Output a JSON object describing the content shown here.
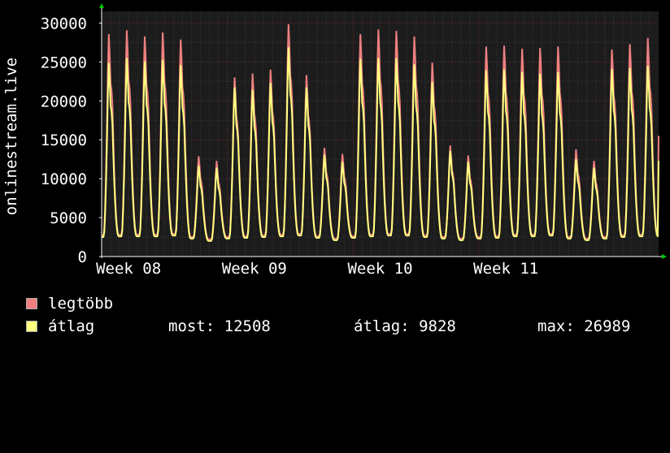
{
  "chart_data": {
    "type": "line",
    "ylabel": "onlinestream.live",
    "ylim": [
      0,
      31500
    ],
    "yticks": [
      0,
      5000,
      10000,
      15000,
      20000,
      25000,
      30000
    ],
    "ytick_labels": [
      "0",
      "5000",
      "10000",
      "15000",
      "20000",
      "25000",
      "30000"
    ],
    "x_axis_unit": "day",
    "xlim": [
      0,
      31
    ],
    "week_ticks": [
      {
        "label": "Week 08",
        "day": 1
      },
      {
        "label": "Week 09",
        "day": 8
      },
      {
        "label": "Week 10",
        "day": 15
      },
      {
        "label": "Week 11",
        "day": 22
      }
    ],
    "daily_peaks": {
      "avg": [
        25000,
        25600,
        25200,
        25400,
        24700,
        11700,
        11400,
        21800,
        21500,
        22400,
        27000,
        21800,
        13100,
        12200,
        25500,
        25600,
        25600,
        24800,
        22500,
        13600,
        12200,
        24000,
        24100,
        23800,
        23600,
        23800,
        12500,
        11400,
        24200,
        24300,
        24600
      ],
      "max": [
        28700,
        29200,
        28400,
        28900,
        28000,
        12900,
        12300,
        23100,
        23600,
        24100,
        30000,
        23400,
        14000,
        13200,
        28700,
        29300,
        29100,
        28400,
        25000,
        14300,
        13000,
        27100,
        27200,
        26800,
        26900,
        27100,
        13800,
        12300,
        26700,
        27400,
        28200
      ]
    },
    "daily_troughs": {
      "avg": [
        2500,
        2600,
        2600,
        2600,
        2700,
        2300,
        2000,
        2300,
        2400,
        2500,
        2600,
        2700,
        2400,
        2100,
        2400,
        2600,
        2700,
        2700,
        2500,
        2300,
        2100,
        2300,
        2400,
        2600,
        2600,
        2700,
        2300,
        2100,
        2300,
        2500,
        2600
      ],
      "max": [
        2700,
        2800,
        2800,
        2800,
        2900,
        2500,
        2200,
        2500,
        2600,
        2700,
        2800,
        2900,
        2600,
        2300,
        2600,
        2800,
        2900,
        2900,
        2700,
        2500,
        2300,
        2500,
        2600,
        2800,
        2800,
        2900,
        2500,
        2300,
        2500,
        2700,
        2800
      ]
    },
    "last_value": {
      "avg": 12300,
      "max": 15500
    },
    "series": [
      {
        "name": "legtöbb",
        "color": "#f08080"
      },
      {
        "name": "átlag",
        "color": "#ffff80"
      }
    ],
    "grid": true,
    "legend_position": "bottom-left"
  },
  "legend": {
    "max_label": "legtöbb",
    "avg_label": "átlag",
    "now": "most: 12508",
    "average": "átlag: 9828",
    "maximum": "max: 26989"
  }
}
